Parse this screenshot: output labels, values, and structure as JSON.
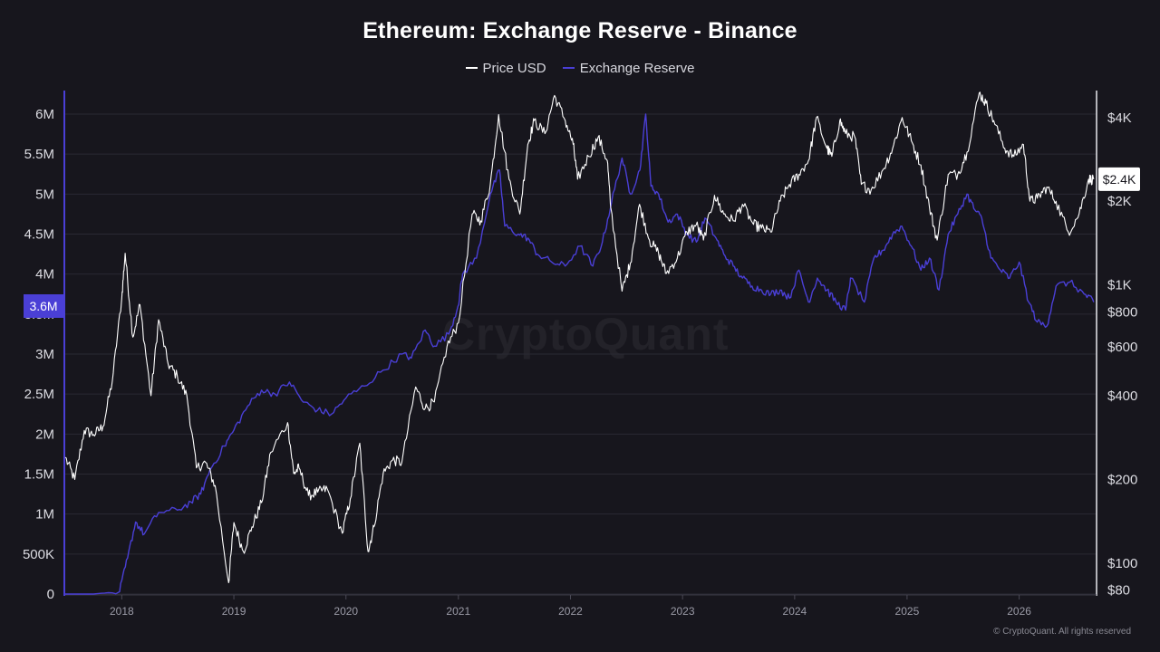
{
  "chart_data": {
    "type": "line",
    "title": "Ethereum: Exchange Reserve - Binance",
    "legend_position": "top-center",
    "grid": true,
    "series": [
      {
        "name": "Price USD",
        "axis": "right",
        "scale": "log",
        "color": "#ffffff",
        "points": [
          [
            "2017-07-01",
            240
          ],
          [
            "2017-08-01",
            200
          ],
          [
            "2017-09-01",
            300
          ],
          [
            "2017-10-01",
            290
          ],
          [
            "2017-11-01",
            310
          ],
          [
            "2017-12-01",
            450
          ],
          [
            "2018-01-01",
            900
          ],
          [
            "2018-01-12",
            1300
          ],
          [
            "2018-02-06",
            650
          ],
          [
            "2018-03-01",
            850
          ],
          [
            "2018-04-06",
            400
          ],
          [
            "2018-05-01",
            750
          ],
          [
            "2018-06-01",
            520
          ],
          [
            "2018-07-01",
            470
          ],
          [
            "2018-08-01",
            400
          ],
          [
            "2018-09-01",
            220
          ],
          [
            "2018-10-01",
            230
          ],
          [
            "2018-11-01",
            190
          ],
          [
            "2018-12-15",
            85
          ],
          [
            "2019-01-01",
            140
          ],
          [
            "2019-02-01",
            110
          ],
          [
            "2019-03-01",
            135
          ],
          [
            "2019-04-01",
            165
          ],
          [
            "2019-05-01",
            250
          ],
          [
            "2019-06-25",
            320
          ],
          [
            "2019-07-15",
            210
          ],
          [
            "2019-08-01",
            220
          ],
          [
            "2019-09-01",
            175
          ],
          [
            "2019-10-01",
            180
          ],
          [
            "2019-11-01",
            185
          ],
          [
            "2019-12-20",
            128
          ],
          [
            "2020-01-15",
            170
          ],
          [
            "2020-02-15",
            270
          ],
          [
            "2020-03-13",
            110
          ],
          [
            "2020-04-01",
            135
          ],
          [
            "2020-05-01",
            210
          ],
          [
            "2020-06-01",
            235
          ],
          [
            "2020-07-01",
            230
          ],
          [
            "2020-08-15",
            430
          ],
          [
            "2020-09-15",
            360
          ],
          [
            "2020-10-15",
            380
          ],
          [
            "2020-11-25",
            600
          ],
          [
            "2021-01-01",
            730
          ],
          [
            "2021-02-15",
            1800
          ],
          [
            "2021-03-15",
            1700
          ],
          [
            "2021-04-15",
            2300
          ],
          [
            "2021-05-12",
            4100
          ],
          [
            "2021-06-15",
            2400
          ],
          [
            "2021-07-20",
            1800
          ],
          [
            "2021-08-15",
            3200
          ],
          [
            "2021-09-05",
            3900
          ],
          [
            "2021-10-10",
            3500
          ],
          [
            "2021-11-10",
            4800
          ],
          [
            "2021-12-15",
            3900
          ],
          [
            "2022-01-10",
            3200
          ],
          [
            "2022-01-24",
            2400
          ],
          [
            "2022-03-01",
            2900
          ],
          [
            "2022-04-01",
            3400
          ],
          [
            "2022-05-01",
            2800
          ],
          [
            "2022-05-12",
            1900
          ],
          [
            "2022-06-18",
            950
          ],
          [
            "2022-07-15",
            1200
          ],
          [
            "2022-08-14",
            1950
          ],
          [
            "2022-09-15",
            1450
          ],
          [
            "2022-10-15",
            1300
          ],
          [
            "2022-11-09",
            1100
          ],
          [
            "2022-12-15",
            1250
          ],
          [
            "2023-01-15",
            1550
          ],
          [
            "2023-02-15",
            1650
          ],
          [
            "2023-03-10",
            1450
          ],
          [
            "2023-04-15",
            2100
          ],
          [
            "2023-05-15",
            1800
          ],
          [
            "2023-06-15",
            1700
          ],
          [
            "2023-07-15",
            1950
          ],
          [
            "2023-08-20",
            1650
          ],
          [
            "2023-09-15",
            1600
          ],
          [
            "2023-10-15",
            1550
          ],
          [
            "2023-11-15",
            2000
          ],
          [
            "2023-12-15",
            2300
          ],
          [
            "2024-01-15",
            2500
          ],
          [
            "2024-02-15",
            2800
          ],
          [
            "2024-03-12",
            4000
          ],
          [
            "2024-04-15",
            3100
          ],
          [
            "2024-05-01",
            2900
          ],
          [
            "2024-05-27",
            3900
          ],
          [
            "2024-06-15",
            3500
          ],
          [
            "2024-07-15",
            3400
          ],
          [
            "2024-08-05",
            2300
          ],
          [
            "2024-09-06",
            2200
          ],
          [
            "2024-10-15",
            2600
          ],
          [
            "2024-11-15",
            3100
          ],
          [
            "2024-12-16",
            4000
          ],
          [
            "2025-01-15",
            3300
          ],
          [
            "2025-02-15",
            2700
          ],
          [
            "2025-03-15",
            1900
          ],
          [
            "2025-04-09",
            1450
          ],
          [
            "2025-05-15",
            2500
          ],
          [
            "2025-06-15",
            2500
          ],
          [
            "2025-07-15",
            3000
          ],
          [
            "2025-08-24",
            4900
          ],
          [
            "2025-09-15",
            4500
          ],
          [
            "2025-10-10",
            3900
          ],
          [
            "2025-11-15",
            3100
          ],
          [
            "2025-12-15",
            2900
          ],
          [
            "2026-01-15",
            3200
          ],
          [
            "2026-02-05",
            2000
          ],
          [
            "2026-03-01",
            2050
          ],
          [
            "2026-04-01",
            2250
          ],
          [
            "2026-05-01",
            2000
          ],
          [
            "2026-06-10",
            1550
          ],
          [
            "2026-07-15",
            1800
          ],
          [
            "2026-08-15",
            2400
          ],
          [
            "2026-09-01",
            2400
          ]
        ]
      },
      {
        "name": "Exchange Reserve",
        "axis": "left",
        "scale": "linear",
        "color": "#4a3fd6",
        "points": [
          [
            "2017-07-01",
            0
          ],
          [
            "2017-10-01",
            0
          ],
          [
            "2017-12-25",
            30000
          ],
          [
            "2018-01-20",
            450000
          ],
          [
            "2018-02-15",
            900000
          ],
          [
            "2018-03-15",
            750000
          ],
          [
            "2018-05-01",
            1020000
          ],
          [
            "2018-07-01",
            1050000
          ],
          [
            "2018-08-15",
            1150000
          ],
          [
            "2018-09-15",
            1250000
          ],
          [
            "2018-10-15",
            1550000
          ],
          [
            "2018-12-01",
            1850000
          ],
          [
            "2019-01-01",
            2050000
          ],
          [
            "2019-02-15",
            2350000
          ],
          [
            "2019-04-01",
            2550000
          ],
          [
            "2019-05-15",
            2500000
          ],
          [
            "2019-07-01",
            2650000
          ],
          [
            "2019-08-15",
            2400000
          ],
          [
            "2019-10-01",
            2300000
          ],
          [
            "2019-11-15",
            2250000
          ],
          [
            "2020-01-01",
            2450000
          ],
          [
            "2020-03-01",
            2600000
          ],
          [
            "2020-05-01",
            2800000
          ],
          [
            "2020-07-01",
            3000000
          ],
          [
            "2020-08-01",
            2950000
          ],
          [
            "2020-09-15",
            3300000
          ],
          [
            "2020-10-15",
            3100000
          ],
          [
            "2020-12-01",
            3250000
          ],
          [
            "2020-12-31",
            3600000
          ],
          [
            "2021-01-15",
            4000000
          ],
          [
            "2021-03-01",
            4200000
          ],
          [
            "2021-04-15",
            5000000
          ],
          [
            "2021-05-15",
            5300000
          ],
          [
            "2021-06-01",
            4600000
          ],
          [
            "2021-07-15",
            4500000
          ],
          [
            "2021-08-15",
            4450000
          ],
          [
            "2021-09-15",
            4250000
          ],
          [
            "2021-11-01",
            4150000
          ],
          [
            "2021-12-15",
            4100000
          ],
          [
            "2022-02-01",
            4350000
          ],
          [
            "2022-03-15",
            4100000
          ],
          [
            "2022-04-15",
            4400000
          ],
          [
            "2022-05-15",
            4900000
          ],
          [
            "2022-06-18",
            5450000
          ],
          [
            "2022-07-15",
            5000000
          ],
          [
            "2022-08-15",
            5300000
          ],
          [
            "2022-09-03",
            6000000
          ],
          [
            "2022-09-20",
            5100000
          ],
          [
            "2022-10-15",
            5000000
          ],
          [
            "2022-11-15",
            4650000
          ],
          [
            "2022-12-15",
            4750000
          ],
          [
            "2023-01-15",
            4500000
          ],
          [
            "2023-02-15",
            4400000
          ],
          [
            "2023-03-15",
            4700000
          ],
          [
            "2023-04-20",
            4450000
          ],
          [
            "2023-05-15",
            4250000
          ],
          [
            "2023-06-15",
            4100000
          ],
          [
            "2023-07-15",
            3950000
          ],
          [
            "2023-08-15",
            3850000
          ],
          [
            "2023-09-15",
            3800000
          ],
          [
            "2023-10-15",
            3750000
          ],
          [
            "2023-11-15",
            3800000
          ],
          [
            "2023-12-15",
            3700000
          ],
          [
            "2024-01-15",
            4050000
          ],
          [
            "2024-02-15",
            3650000
          ],
          [
            "2024-03-15",
            3950000
          ],
          [
            "2024-04-15",
            3800000
          ],
          [
            "2024-05-15",
            3650000
          ],
          [
            "2024-06-15",
            3550000
          ],
          [
            "2024-07-01",
            3950000
          ],
          [
            "2024-08-15",
            3650000
          ],
          [
            "2024-09-15",
            4200000
          ],
          [
            "2024-10-15",
            4300000
          ],
          [
            "2024-11-15",
            4500000
          ],
          [
            "2024-12-15",
            4600000
          ],
          [
            "2025-01-15",
            4350000
          ],
          [
            "2025-02-15",
            4050000
          ],
          [
            "2025-03-15",
            4200000
          ],
          [
            "2025-04-15",
            3800000
          ],
          [
            "2025-05-15",
            4500000
          ],
          [
            "2025-06-15",
            4750000
          ],
          [
            "2025-07-15",
            5000000
          ],
          [
            "2025-08-10",
            4800000
          ],
          [
            "2025-09-01",
            4700000
          ],
          [
            "2025-10-01",
            4200000
          ],
          [
            "2025-11-01",
            4050000
          ],
          [
            "2025-12-01",
            3950000
          ],
          [
            "2026-01-01",
            4150000
          ],
          [
            "2026-02-01",
            3650000
          ],
          [
            "2026-03-01",
            3400000
          ],
          [
            "2026-04-01",
            3350000
          ],
          [
            "2026-05-01",
            3850000
          ],
          [
            "2026-06-15",
            3900000
          ],
          [
            "2026-08-01",
            3750000
          ],
          [
            "2026-09-01",
            3650000
          ]
        ]
      }
    ],
    "left_axis": {
      "ticks": [
        "0",
        "500K",
        "1M",
        "1.5M",
        "2M",
        "2.5M",
        "3M",
        "3.5M",
        "4M",
        "4.5M",
        "5M",
        "5.5M",
        "6M"
      ],
      "tick_values": [
        0,
        500000,
        1000000,
        1500000,
        2000000,
        2500000,
        3000000,
        3500000,
        4000000,
        4500000,
        5000000,
        5500000,
        6000000
      ],
      "ylim": [
        0,
        6000000
      ],
      "current_label": "3.6M",
      "current_value": 3600000,
      "label_color": "#4a3fd6"
    },
    "right_axis": {
      "scale": "log",
      "ticks": [
        "$80",
        "$100",
        "$200",
        "$400",
        "$600",
        "$800",
        "$1K",
        "$2K",
        "$4K"
      ],
      "tick_values": [
        80,
        100,
        200,
        400,
        600,
        800,
        1000,
        2000,
        4000
      ],
      "ylim": [
        60,
        5000
      ],
      "current_label": "$2.4K",
      "current_value": 2400
    },
    "x_axis": {
      "type": "date",
      "xlim": [
        "2017-07-01",
        "2026-09-10"
      ],
      "ticks": [
        "2018",
        "2019",
        "2020",
        "2021",
        "2022",
        "2023",
        "2024",
        "2025",
        "2026"
      ],
      "tick_dates": [
        "2018-01-01",
        "2019-01-01",
        "2020-01-01",
        "2021-01-01",
        "2022-01-01",
        "2023-01-01",
        "2024-01-01",
        "2025-01-01",
        "2026-01-01"
      ]
    }
  },
  "watermark": "CryptoQuant",
  "copyright": "© CryptoQuant. All rights reserved"
}
